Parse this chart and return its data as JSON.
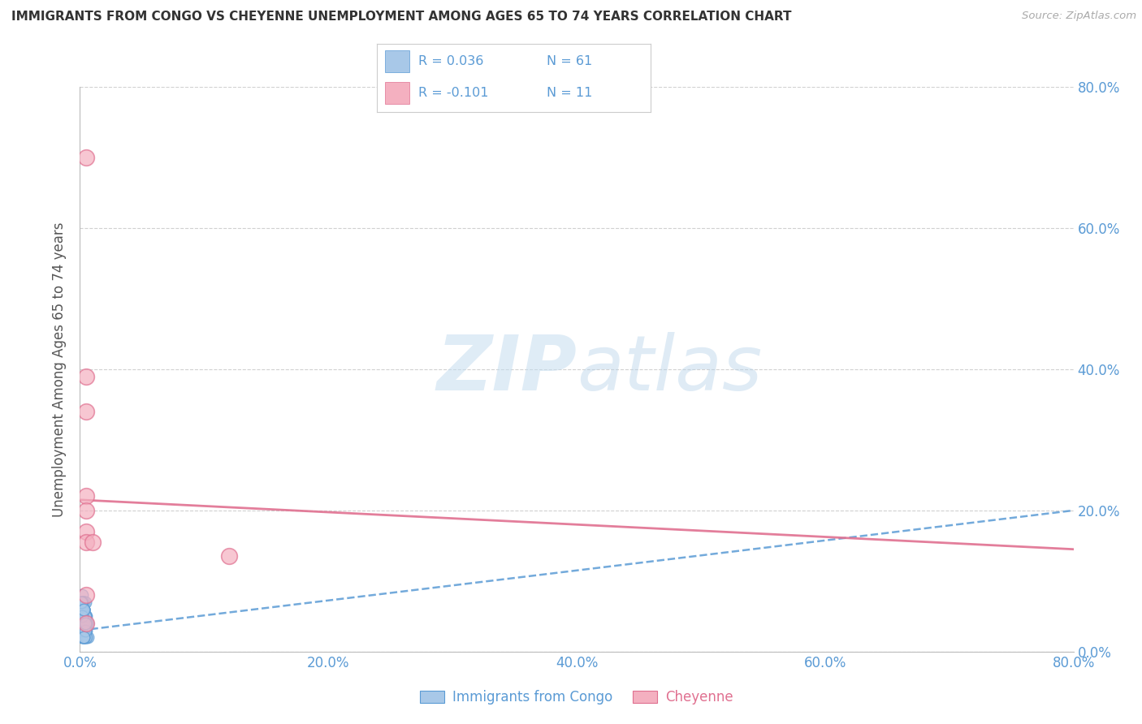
{
  "title": "IMMIGRANTS FROM CONGO VS CHEYENNE UNEMPLOYMENT AMONG AGES 65 TO 74 YEARS CORRELATION CHART",
  "source": "Source: ZipAtlas.com",
  "ylabel": "Unemployment Among Ages 65 to 74 years",
  "xlim": [
    0,
    0.8
  ],
  "ylim": [
    0,
    0.8
  ],
  "xtick_labels": [
    "0.0%",
    "20.0%",
    "40.0%",
    "60.0%",
    "80.0%"
  ],
  "xtick_values": [
    0,
    0.2,
    0.4,
    0.6,
    0.8
  ],
  "ytick_values": [
    0.0,
    0.2,
    0.4,
    0.6,
    0.8
  ],
  "right_ytick_labels": [
    "0.0%",
    "20.0%",
    "40.0%",
    "60.0%",
    "80.0%"
  ],
  "blue_color": "#a8c8e8",
  "pink_color": "#f4b0c0",
  "blue_edge_color": "#5b9bd5",
  "pink_edge_color": "#e07090",
  "blue_line_color": "#5b9bd5",
  "pink_line_color": "#e07090",
  "tick_label_color": "#5b9bd5",
  "legend_text_color": "#5b9bd5",
  "legend_r_blue": "R = 0.036",
  "legend_n_blue": "N = 61",
  "legend_r_pink": "R = -0.101",
  "legend_n_pink": "N = 11",
  "watermark_zip": "ZIP",
  "watermark_atlas": "atlas",
  "grid_color": "#d0d0d0",
  "background_color": "#ffffff",
  "blue_scatter_x": [
    0.003,
    0.004,
    0.002,
    0.005,
    0.006,
    0.001,
    0.003,
    0.002,
    0.004,
    0.005,
    0.003,
    0.002,
    0.001,
    0.004,
    0.003,
    0.006,
    0.002,
    0.003,
    0.004,
    0.001,
    0.005,
    0.003,
    0.002,
    0.004,
    0.003,
    0.002,
    0.001,
    0.003,
    0.004,
    0.005,
    0.002,
    0.003,
    0.001,
    0.004,
    0.003,
    0.002,
    0.005,
    0.003,
    0.004,
    0.002,
    0.003,
    0.004,
    0.001,
    0.003,
    0.002,
    0.004,
    0.005,
    0.003,
    0.002,
    0.001,
    0.004,
    0.003,
    0.002,
    0.005,
    0.003,
    0.004,
    0.002,
    0.003,
    0.001,
    0.004,
    0.003
  ],
  "blue_scatter_y": [
    0.05,
    0.03,
    0.08,
    0.04,
    0.02,
    0.06,
    0.07,
    0.05,
    0.03,
    0.04,
    0.06,
    0.02,
    0.05,
    0.03,
    0.07,
    0.04,
    0.06,
    0.02,
    0.05,
    0.04,
    0.03,
    0.06,
    0.05,
    0.02,
    0.07,
    0.04,
    0.03,
    0.06,
    0.02,
    0.05,
    0.04,
    0.03,
    0.07,
    0.05,
    0.06,
    0.02,
    0.04,
    0.03,
    0.05,
    0.07,
    0.02,
    0.04,
    0.06,
    0.03,
    0.05,
    0.07,
    0.02,
    0.04,
    0.06,
    0.03,
    0.05,
    0.02,
    0.07,
    0.04,
    0.06,
    0.03,
    0.05,
    0.02,
    0.07,
    0.04,
    0.06
  ],
  "pink_scatter_x": [
    0.005,
    0.005,
    0.005,
    0.005,
    0.005,
    0.005,
    0.005,
    0.01,
    0.005,
    0.12,
    0.005
  ],
  "pink_scatter_y": [
    0.7,
    0.39,
    0.34,
    0.22,
    0.2,
    0.17,
    0.155,
    0.155,
    0.08,
    0.135,
    0.04
  ],
  "blue_trend_x": [
    0.0,
    0.8
  ],
  "blue_trend_y": [
    0.03,
    0.2
  ],
  "pink_trend_x": [
    0.0,
    0.8
  ],
  "pink_trend_y": [
    0.215,
    0.145
  ],
  "legend_bottom_labels": [
    "Immigrants from Congo",
    "Cheyenne"
  ]
}
